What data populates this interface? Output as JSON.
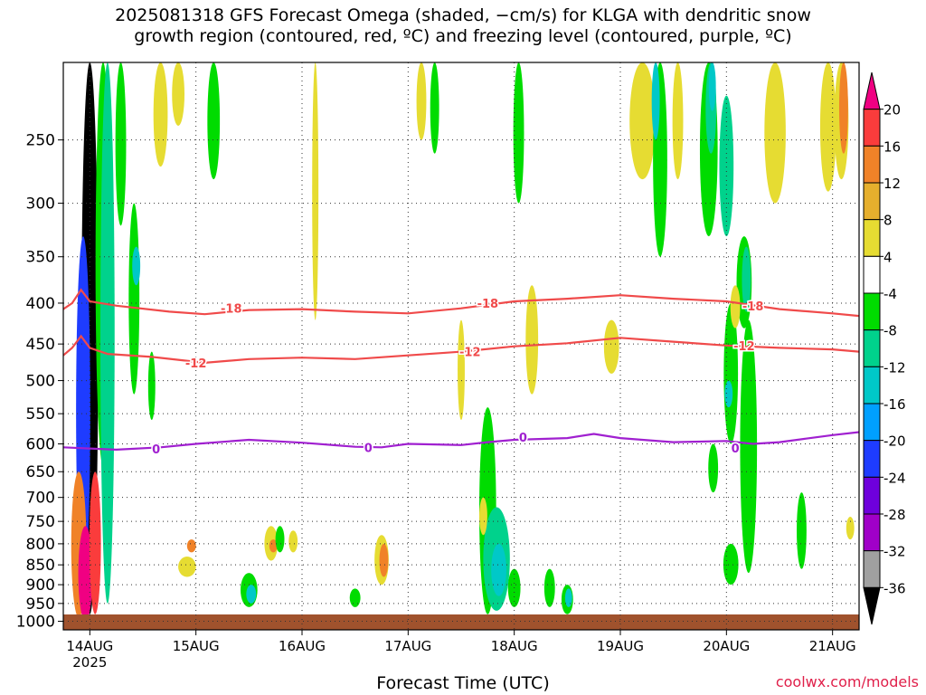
{
  "chart_data": {
    "type": "heatmap",
    "title_lines": [
      "2025081318 GFS Forecast Omega (shaded, −cm/s) for KLGA with dendritic snow",
      "growth region (contoured, red, ºC) and freezing level (contoured, purple, ºC)"
    ],
    "xlabel": "Forecast Time (UTC)",
    "ylabel": "",
    "x_ticks": [
      {
        "t": 0,
        "label": "14AUG",
        "sub": "2025"
      },
      {
        "t": 24,
        "label": "15AUG",
        "sub": ""
      },
      {
        "t": 48,
        "label": "16AUG",
        "sub": ""
      },
      {
        "t": 72,
        "label": "17AUG",
        "sub": ""
      },
      {
        "t": 96,
        "label": "18AUG",
        "sub": ""
      },
      {
        "t": 120,
        "label": "19AUG",
        "sub": ""
      },
      {
        "t": 144,
        "label": "20AUG",
        "sub": ""
      },
      {
        "t": 168,
        "label": "21AUG",
        "sub": ""
      }
    ],
    "xlim_hours": [
      -6,
      174
    ],
    "y_ticks": [
      250,
      300,
      350,
      400,
      450,
      500,
      550,
      600,
      650,
      700,
      750,
      800,
      850,
      900,
      950,
      1000
    ],
    "ylim_hpa": [
      200,
      1025
    ],
    "y_scale": "log",
    "grid": "dotted",
    "colorbar": {
      "levels": [
        -36,
        -32,
        -28,
        -24,
        -20,
        -16,
        -12,
        -8,
        -4,
        4,
        8,
        12,
        16,
        20
      ],
      "labels": [
        "20",
        "16",
        "12",
        "8",
        "4",
        "-4",
        "-8",
        "-12",
        "-16",
        "-20",
        "-24",
        "-28",
        "-32",
        "-36"
      ],
      "colors_bottom_to_top": [
        "#000000",
        "#a0a0a0",
        "#a000c8",
        "#6e00dc",
        "#1e3cff",
        "#00a0ff",
        "#00c8c8",
        "#00d28c",
        "#00dc00",
        "#ffffff",
        "#e6dc32",
        "#e6af2d",
        "#f08228",
        "#fa3c3c",
        "#f00082"
      ]
    },
    "contours": [
      {
        "label": "-18",
        "color": "#f04a4a",
        "points": [
          [
            -6,
            407
          ],
          [
            -4,
            400
          ],
          [
            -2,
            385
          ],
          [
            0,
            398
          ],
          [
            6,
            403
          ],
          [
            18,
            410
          ],
          [
            26,
            413
          ],
          [
            36,
            408
          ],
          [
            48,
            407
          ],
          [
            60,
            410
          ],
          [
            72,
            412
          ],
          [
            84,
            406
          ],
          [
            96,
            398
          ],
          [
            108,
            395
          ],
          [
            120,
            391
          ],
          [
            132,
            395
          ],
          [
            144,
            398
          ],
          [
            156,
            407
          ],
          [
            168,
            412
          ],
          [
            174,
            415
          ]
        ],
        "label_at": [
          [
            32,
            406
          ],
          [
            90,
            400
          ],
          [
            150,
            403
          ]
        ]
      },
      {
        "label": "-12",
        "color": "#f04a4a",
        "points": [
          [
            -6,
            465
          ],
          [
            -4,
            455
          ],
          [
            -2,
            440
          ],
          [
            0,
            455
          ],
          [
            4,
            463
          ],
          [
            14,
            467
          ],
          [
            26,
            475
          ],
          [
            36,
            470
          ],
          [
            48,
            468
          ],
          [
            60,
            470
          ],
          [
            72,
            465
          ],
          [
            84,
            460
          ],
          [
            96,
            453
          ],
          [
            108,
            449
          ],
          [
            120,
            442
          ],
          [
            132,
            447
          ],
          [
            144,
            452
          ],
          [
            156,
            455
          ],
          [
            168,
            457
          ],
          [
            174,
            460
          ]
        ],
        "label_at": [
          [
            24,
            475
          ],
          [
            86,
            460
          ],
          [
            148,
            452
          ]
        ]
      },
      {
        "label": "0",
        "color": "#a020d0",
        "points": [
          [
            -6,
            606
          ],
          [
            0,
            608
          ],
          [
            6,
            610
          ],
          [
            16,
            606
          ],
          [
            24,
            600
          ],
          [
            36,
            593
          ],
          [
            48,
            598
          ],
          [
            60,
            605
          ],
          [
            66,
            606
          ],
          [
            72,
            600
          ],
          [
            84,
            602
          ],
          [
            90,
            597
          ],
          [
            96,
            593
          ],
          [
            108,
            590
          ],
          [
            114,
            583
          ],
          [
            120,
            590
          ],
          [
            132,
            597
          ],
          [
            144,
            595
          ],
          [
            150,
            600
          ],
          [
            156,
            597
          ],
          [
            162,
            591
          ],
          [
            168,
            585
          ],
          [
            174,
            580
          ]
        ],
        "label_at": [
          [
            15,
            609
          ],
          [
            63,
            606
          ],
          [
            98,
            588
          ],
          [
            146,
            607
          ]
        ]
      }
    ],
    "blobs": [
      {
        "t": 0,
        "p1": 200,
        "p2": 980,
        "w": 1.5,
        "v": -40
      },
      {
        "t": -1.5,
        "p1": 330,
        "p2": 900,
        "w": 1.2,
        "v": -22
      },
      {
        "t": -2.5,
        "p1": 650,
        "p2": 990,
        "w": 1.3,
        "v": 14
      },
      {
        "t": -1,
        "p1": 760,
        "p2": 1000,
        "w": 1.2,
        "v": 20
      },
      {
        "t": 1.2,
        "p1": 650,
        "p2": 980,
        "w": 0.9,
        "v": 18
      },
      {
        "t": 3,
        "p1": 200,
        "p2": 640,
        "w": 1.3,
        "v": -6
      },
      {
        "t": 4,
        "p1": 200,
        "p2": 950,
        "w": 1.2,
        "v": -10
      },
      {
        "t": 7,
        "p1": 200,
        "p2": 320,
        "w": 0.8,
        "v": -6
      },
      {
        "t": 10,
        "p1": 300,
        "p2": 520,
        "w": 0.8,
        "v": -8
      },
      {
        "t": 10.5,
        "p1": 340,
        "p2": 380,
        "w": 0.5,
        "v": -14
      },
      {
        "t": 16,
        "p1": 200,
        "p2": 270,
        "w": 1.2,
        "v": 5
      },
      {
        "t": 20,
        "p1": 200,
        "p2": 240,
        "w": 1,
        "v": 5
      },
      {
        "t": 28,
        "p1": 200,
        "p2": 280,
        "w": 1,
        "v": -6
      },
      {
        "t": 22,
        "p1": 830,
        "p2": 880,
        "w": 1.6,
        "v": 6
      },
      {
        "t": 23,
        "p1": 790,
        "p2": 820,
        "w": 0.6,
        "v": 12
      },
      {
        "t": 14,
        "p1": 460,
        "p2": 560,
        "w": 0.4,
        "v": -6
      },
      {
        "t": 36,
        "p1": 870,
        "p2": 960,
        "w": 1.5,
        "v": -6
      },
      {
        "t": 36.5,
        "p1": 900,
        "p2": 950,
        "w": 0.7,
        "v": -14
      },
      {
        "t": 41,
        "p1": 760,
        "p2": 840,
        "w": 1.1,
        "v": 6
      },
      {
        "t": 41.5,
        "p1": 790,
        "p2": 820,
        "w": 0.5,
        "v": 12
      },
      {
        "t": 43,
        "p1": 760,
        "p2": 820,
        "w": 0.6,
        "v": -6
      },
      {
        "t": 46,
        "p1": 770,
        "p2": 820,
        "w": 0.6,
        "v": 5
      },
      {
        "t": 51,
        "p1": 200,
        "p2": 420,
        "w": 0.3,
        "v": 5
      },
      {
        "t": 60,
        "p1": 910,
        "p2": 960,
        "w": 0.8,
        "v": -8
      },
      {
        "t": 66,
        "p1": 780,
        "p2": 900,
        "w": 1.2,
        "v": 6
      },
      {
        "t": 66.5,
        "p1": 800,
        "p2": 880,
        "w": 0.6,
        "v": 12
      },
      {
        "t": 75,
        "p1": 200,
        "p2": 250,
        "w": 0.7,
        "v": 5
      },
      {
        "t": 78,
        "p1": 200,
        "p2": 260,
        "w": 0.6,
        "v": -6
      },
      {
        "t": 84,
        "p1": 420,
        "p2": 560,
        "w": 0.4,
        "v": 5
      },
      {
        "t": 90,
        "p1": 540,
        "p2": 980,
        "w": 1.5,
        "v": -8
      },
      {
        "t": 92,
        "p1": 720,
        "p2": 970,
        "w": 2.6,
        "v": -10
      },
      {
        "t": 92.5,
        "p1": 800,
        "p2": 930,
        "w": 1.3,
        "v": -14
      },
      {
        "t": 89,
        "p1": 700,
        "p2": 780,
        "w": 0.5,
        "v": 6
      },
      {
        "t": 96,
        "p1": 860,
        "p2": 960,
        "w": 1,
        "v": -8
      },
      {
        "t": 100,
        "p1": 380,
        "p2": 520,
        "w": 1,
        "v": 5
      },
      {
        "t": 97,
        "p1": 200,
        "p2": 300,
        "w": 0.8,
        "v": -6
      },
      {
        "t": 104,
        "p1": 860,
        "p2": 960,
        "w": 0.8,
        "v": -6
      },
      {
        "t": 108,
        "p1": 900,
        "p2": 980,
        "w": 0.9,
        "v": -8
      },
      {
        "t": 108.3,
        "p1": 910,
        "p2": 960,
        "w": 0.4,
        "v": -14
      },
      {
        "t": 118,
        "p1": 420,
        "p2": 490,
        "w": 1.3,
        "v": 5
      },
      {
        "t": 125,
        "p1": 200,
        "p2": 280,
        "w": 2.5,
        "v": 5
      },
      {
        "t": 129,
        "p1": 200,
        "p2": 350,
        "w": 1.2,
        "v": -8
      },
      {
        "t": 128,
        "p1": 200,
        "p2": 250,
        "w": 0.5,
        "v": -14
      },
      {
        "t": 133,
        "p1": 200,
        "p2": 280,
        "w": 0.8,
        "v": 5
      },
      {
        "t": 140,
        "p1": 200,
        "p2": 330,
        "w": 1.6,
        "v": -8
      },
      {
        "t": 140.5,
        "p1": 200,
        "p2": 260,
        "w": 0.8,
        "v": -12
      },
      {
        "t": 140.8,
        "p1": 200,
        "p2": 230,
        "w": 0.4,
        "v": -16
      },
      {
        "t": 144,
        "p1": 220,
        "p2": 330,
        "w": 1.2,
        "v": -10
      },
      {
        "t": 145,
        "p1": 400,
        "p2": 600,
        "w": 1.2,
        "v": -8
      },
      {
        "t": 144.5,
        "p1": 500,
        "p2": 540,
        "w": 0.5,
        "v": -14
      },
      {
        "t": 145,
        "p1": 800,
        "p2": 900,
        "w": 1.3,
        "v": -6
      },
      {
        "t": 141,
        "p1": 600,
        "p2": 690,
        "w": 0.7,
        "v": -6
      },
      {
        "t": 149,
        "p1": 420,
        "p2": 870,
        "w": 1.5,
        "v": -6
      },
      {
        "t": 148,
        "p1": 330,
        "p2": 430,
        "w": 1.3,
        "v": -8
      },
      {
        "t": 148.5,
        "p1": 340,
        "p2": 410,
        "w": 0.6,
        "v": -12
      },
      {
        "t": 146,
        "p1": 380,
        "p2": 430,
        "w": 0.7,
        "v": 6
      },
      {
        "t": 155,
        "p1": 200,
        "p2": 300,
        "w": 2,
        "v": 5
      },
      {
        "t": 161,
        "p1": 690,
        "p2": 860,
        "w": 0.7,
        "v": -6
      },
      {
        "t": 167,
        "p1": 200,
        "p2": 290,
        "w": 1.4,
        "v": 5
      },
      {
        "t": 170,
        "p1": 200,
        "p2": 280,
        "w": 1.2,
        "v": 5
      },
      {
        "t": 170.5,
        "p1": 200,
        "p2": 260,
        "w": 0.6,
        "v": 12
      },
      {
        "t": 172,
        "p1": 740,
        "p2": 790,
        "w": 0.5,
        "v": 5
      }
    ]
  },
  "credit": "coolwx.com/models"
}
